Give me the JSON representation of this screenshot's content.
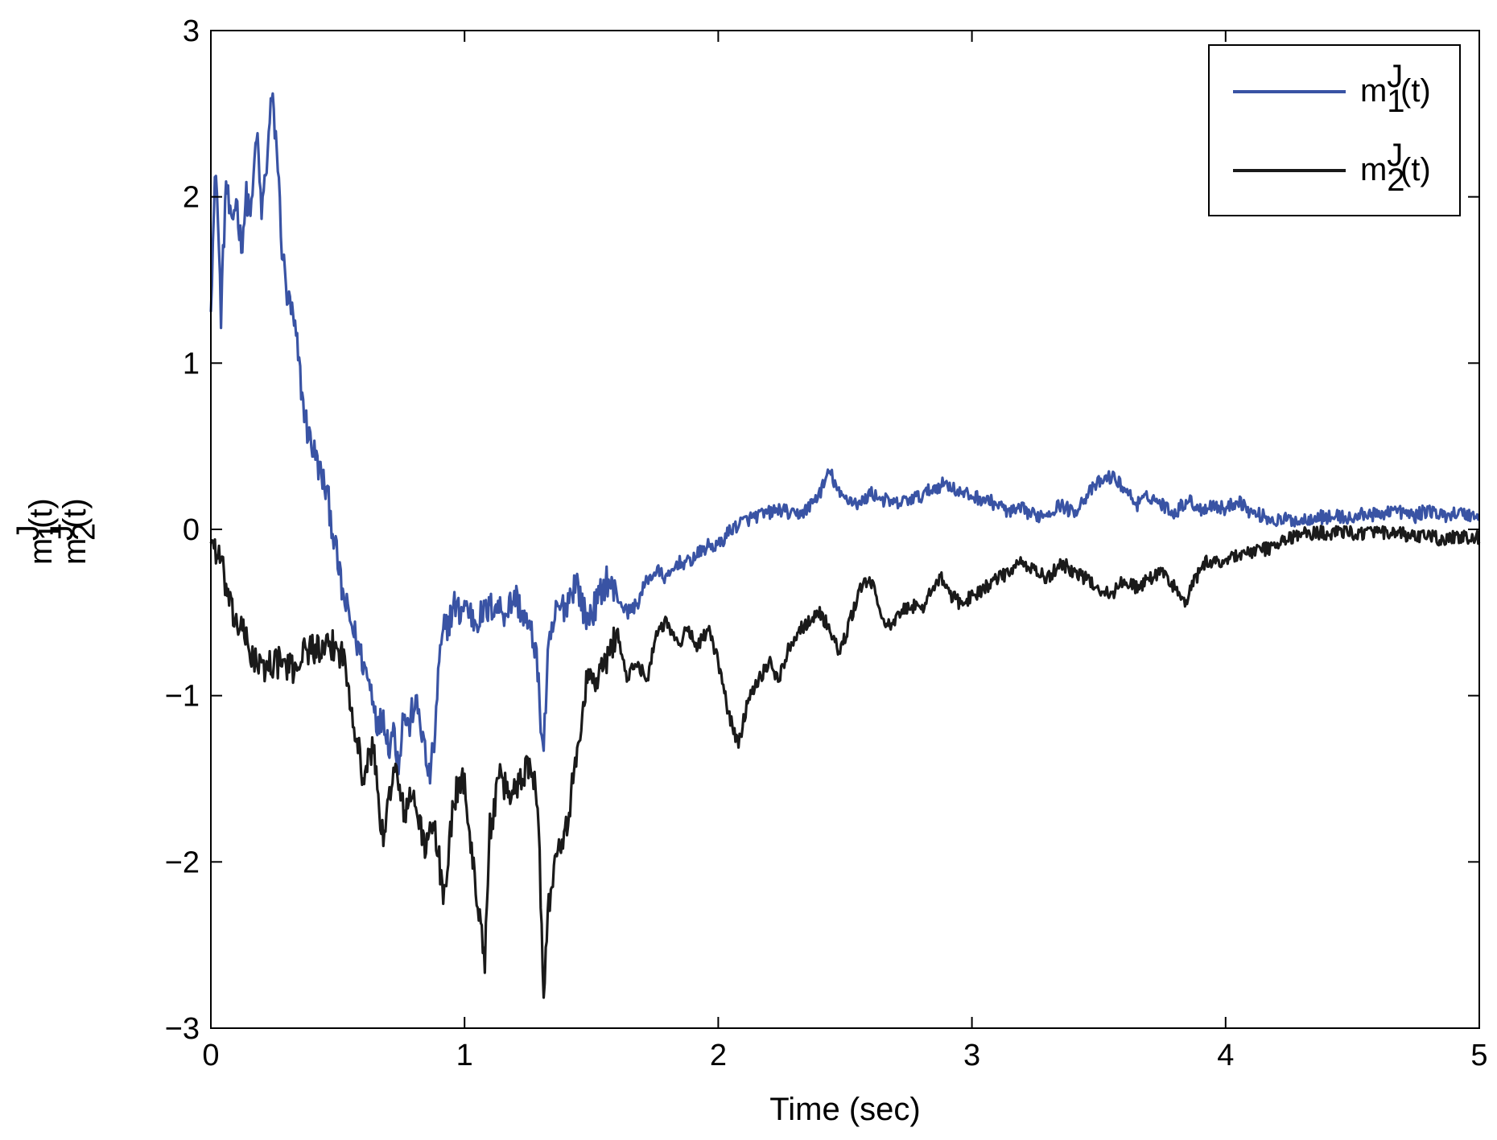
{
  "chart_data": {
    "type": "line",
    "xlabel": "Time (sec)",
    "ylabel_lines": [
      {
        "base": "m",
        "sup": "J",
        "sub": "1",
        "tail": "(t)"
      },
      {
        "base": "m",
        "sup": "J",
        "sub": "2",
        "tail": "(t)"
      }
    ],
    "xlim": [
      0,
      5
    ],
    "ylim": [
      -3,
      3
    ],
    "xticks": [
      0,
      1,
      2,
      3,
      4,
      5
    ],
    "yticks": [
      -3,
      -2,
      -1,
      0,
      1,
      2,
      3
    ],
    "xtick_labels": [
      "0",
      "1",
      "2",
      "3",
      "4",
      "5"
    ],
    "ytick_labels": [
      "−3",
      "−2",
      "−1",
      "0",
      "1",
      "2",
      "3"
    ],
    "grid": false,
    "legend_position": "top-right",
    "series": [
      {
        "legend": {
          "base": "m",
          "sup": "J",
          "sub": "1",
          "tail": "(t)"
        },
        "color": "#3953a4",
        "x": [
          0,
          0.02,
          0.04,
          0.06,
          0.08,
          0.1,
          0.12,
          0.14,
          0.16,
          0.18,
          0.2,
          0.22,
          0.24,
          0.26,
          0.28,
          0.3,
          0.32,
          0.34,
          0.36,
          0.38,
          0.4,
          0.42,
          0.44,
          0.46,
          0.48,
          0.5,
          0.52,
          0.54,
          0.56,
          0.58,
          0.6,
          0.62,
          0.64,
          0.66,
          0.68,
          0.7,
          0.72,
          0.74,
          0.76,
          0.78,
          0.8,
          0.82,
          0.84,
          0.86,
          0.88,
          0.9,
          0.92,
          0.94,
          0.96,
          0.98,
          1.0,
          1.04,
          1.08,
          1.12,
          1.16,
          1.2,
          1.24,
          1.28,
          1.31,
          1.33,
          1.36,
          1.4,
          1.44,
          1.48,
          1.52,
          1.56,
          1.6,
          1.64,
          1.68,
          1.72,
          1.76,
          1.8,
          1.84,
          1.88,
          1.92,
          1.96,
          2.0,
          2.05,
          2.1,
          2.15,
          2.2,
          2.25,
          2.3,
          2.35,
          2.4,
          2.44,
          2.48,
          2.52,
          2.56,
          2.6,
          2.65,
          2.7,
          2.75,
          2.8,
          2.85,
          2.9,
          2.95,
          3.0,
          3.05,
          3.1,
          3.15,
          3.2,
          3.25,
          3.3,
          3.35,
          3.4,
          3.45,
          3.5,
          3.55,
          3.6,
          3.65,
          3.7,
          3.75,
          3.8,
          3.85,
          3.9,
          3.95,
          4.0,
          4.05,
          4.1,
          4.15,
          4.2,
          4.25,
          4.3,
          4.35,
          4.4,
          4.45,
          4.5,
          4.55,
          4.6,
          4.65,
          4.7,
          4.75,
          4.8,
          4.85,
          4.9,
          4.95,
          5.0
        ],
        "y": [
          1.4,
          2.2,
          1.3,
          2.1,
          1.8,
          2.0,
          1.7,
          2.0,
          1.9,
          2.4,
          1.9,
          2.2,
          2.6,
          2.3,
          1.7,
          1.4,
          1.3,
          1.1,
          0.8,
          0.6,
          0.5,
          0.4,
          0.3,
          0.2,
          0.0,
          -0.2,
          -0.4,
          -0.5,
          -0.6,
          -0.7,
          -0.8,
          -0.9,
          -1.0,
          -1.2,
          -1.1,
          -1.3,
          -1.2,
          -1.4,
          -1.1,
          -1.2,
          -1.05,
          -1.1,
          -1.3,
          -1.5,
          -1.3,
          -0.8,
          -0.6,
          -0.55,
          -0.45,
          -0.5,
          -0.45,
          -0.55,
          -0.5,
          -0.45,
          -0.5,
          -0.4,
          -0.55,
          -0.7,
          -1.35,
          -0.75,
          -0.5,
          -0.45,
          -0.3,
          -0.55,
          -0.45,
          -0.3,
          -0.4,
          -0.5,
          -0.45,
          -0.3,
          -0.25,
          -0.3,
          -0.2,
          -0.2,
          -0.15,
          -0.1,
          -0.1,
          0.0,
          0.05,
          0.08,
          0.1,
          0.12,
          0.08,
          0.12,
          0.22,
          0.35,
          0.2,
          0.18,
          0.15,
          0.22,
          0.18,
          0.15,
          0.18,
          0.2,
          0.25,
          0.28,
          0.22,
          0.2,
          0.18,
          0.15,
          0.1,
          0.12,
          0.08,
          0.1,
          0.15,
          0.1,
          0.2,
          0.28,
          0.32,
          0.25,
          0.15,
          0.2,
          0.15,
          0.1,
          0.18,
          0.12,
          0.15,
          0.12,
          0.18,
          0.1,
          0.08,
          0.05,
          0.06,
          0.05,
          0.08,
          0.07,
          0.08,
          0.06,
          0.1,
          0.08,
          0.12,
          0.1,
          0.08,
          0.12,
          0.08,
          0.1,
          0.09,
          0.08
        ],
        "jitter": 0.06
      },
      {
        "legend": {
          "base": "m",
          "sup": "J",
          "sub": "2",
          "tail": "(t)"
        },
        "color": "#1a1a1a",
        "x": [
          0,
          0.04,
          0.08,
          0.12,
          0.16,
          0.2,
          0.24,
          0.28,
          0.32,
          0.36,
          0.4,
          0.44,
          0.48,
          0.52,
          0.56,
          0.6,
          0.64,
          0.68,
          0.72,
          0.76,
          0.8,
          0.84,
          0.88,
          0.92,
          0.96,
          1.0,
          1.03,
          1.06,
          1.08,
          1.1,
          1.14,
          1.18,
          1.22,
          1.26,
          1.29,
          1.31,
          1.33,
          1.36,
          1.4,
          1.44,
          1.48,
          1.52,
          1.56,
          1.6,
          1.64,
          1.68,
          1.72,
          1.76,
          1.8,
          1.84,
          1.88,
          1.92,
          1.96,
          2.0,
          2.04,
          2.08,
          2.12,
          2.16,
          2.2,
          2.24,
          2.28,
          2.32,
          2.36,
          2.4,
          2.44,
          2.48,
          2.52,
          2.56,
          2.6,
          2.64,
          2.68,
          2.72,
          2.76,
          2.8,
          2.84,
          2.88,
          2.92,
          2.96,
          3.0,
          3.05,
          3.1,
          3.15,
          3.2,
          3.25,
          3.3,
          3.35,
          3.4,
          3.45,
          3.5,
          3.55,
          3.6,
          3.65,
          3.7,
          3.75,
          3.8,
          3.84,
          3.88,
          3.92,
          3.96,
          4.0,
          4.05,
          4.1,
          4.15,
          4.2,
          4.25,
          4.3,
          4.35,
          4.4,
          4.45,
          4.5,
          4.55,
          4.6,
          4.65,
          4.7,
          4.75,
          4.8,
          4.85,
          4.9,
          4.95,
          5.0
        ],
        "y": [
          -0.05,
          -0.2,
          -0.5,
          -0.6,
          -0.75,
          -0.85,
          -0.8,
          -0.8,
          -0.85,
          -0.75,
          -0.7,
          -0.75,
          -0.7,
          -0.75,
          -1.1,
          -1.5,
          -1.3,
          -1.9,
          -1.4,
          -1.7,
          -1.6,
          -1.9,
          -1.8,
          -2.2,
          -1.6,
          -1.5,
          -2.0,
          -2.3,
          -2.6,
          -1.8,
          -1.5,
          -1.6,
          -1.5,
          -1.4,
          -1.6,
          -2.8,
          -2.3,
          -1.9,
          -1.8,
          -1.4,
          -0.9,
          -0.9,
          -0.8,
          -0.6,
          -0.9,
          -0.8,
          -0.9,
          -0.6,
          -0.55,
          -0.7,
          -0.6,
          -0.7,
          -0.6,
          -0.8,
          -1.1,
          -1.3,
          -1.0,
          -0.9,
          -0.8,
          -0.9,
          -0.7,
          -0.6,
          -0.55,
          -0.5,
          -0.6,
          -0.75,
          -0.55,
          -0.35,
          -0.3,
          -0.5,
          -0.6,
          -0.5,
          -0.45,
          -0.5,
          -0.35,
          -0.3,
          -0.4,
          -0.45,
          -0.4,
          -0.35,
          -0.3,
          -0.25,
          -0.2,
          -0.25,
          -0.3,
          -0.2,
          -0.25,
          -0.3,
          -0.35,
          -0.4,
          -0.3,
          -0.35,
          -0.3,
          -0.25,
          -0.35,
          -0.45,
          -0.3,
          -0.2,
          -0.2,
          -0.18,
          -0.15,
          -0.14,
          -0.12,
          -0.1,
          -0.05,
          -0.03,
          -0.02,
          -0.02,
          -0.02,
          -0.02,
          -0.02,
          -0.02,
          -0.03,
          -0.03,
          -0.05,
          -0.04,
          -0.06,
          -0.05,
          -0.05,
          -0.05
        ],
        "jitter": 0.06
      }
    ]
  }
}
